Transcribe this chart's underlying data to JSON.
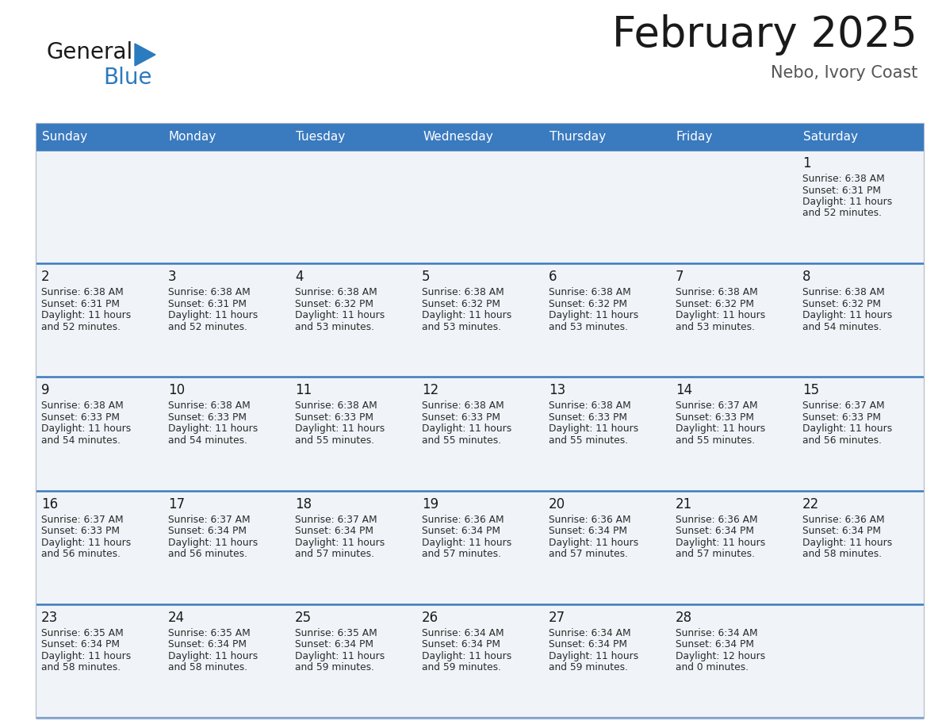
{
  "title": "February 2025",
  "subtitle": "Nebo, Ivory Coast",
  "header_bg": "#3a7abf",
  "header_text_color": "#ffffff",
  "cell_bg": "#f0f4f8",
  "border_color": "#3a7abf",
  "days_of_week": [
    "Sunday",
    "Monday",
    "Tuesday",
    "Wednesday",
    "Thursday",
    "Friday",
    "Saturday"
  ],
  "calendar": [
    [
      null,
      null,
      null,
      null,
      null,
      null,
      {
        "day": "1",
        "sunrise": "6:38 AM",
        "sunset": "6:31 PM",
        "daylight_line1": "11 hours",
        "daylight_line2": "and 52 minutes."
      }
    ],
    [
      {
        "day": "2",
        "sunrise": "6:38 AM",
        "sunset": "6:31 PM",
        "daylight_line1": "11 hours",
        "daylight_line2": "and 52 minutes."
      },
      {
        "day": "3",
        "sunrise": "6:38 AM",
        "sunset": "6:31 PM",
        "daylight_line1": "11 hours",
        "daylight_line2": "and 52 minutes."
      },
      {
        "day": "4",
        "sunrise": "6:38 AM",
        "sunset": "6:32 PM",
        "daylight_line1": "11 hours",
        "daylight_line2": "and 53 minutes."
      },
      {
        "day": "5",
        "sunrise": "6:38 AM",
        "sunset": "6:32 PM",
        "daylight_line1": "11 hours",
        "daylight_line2": "and 53 minutes."
      },
      {
        "day": "6",
        "sunrise": "6:38 AM",
        "sunset": "6:32 PM",
        "daylight_line1": "11 hours",
        "daylight_line2": "and 53 minutes."
      },
      {
        "day": "7",
        "sunrise": "6:38 AM",
        "sunset": "6:32 PM",
        "daylight_line1": "11 hours",
        "daylight_line2": "and 53 minutes."
      },
      {
        "day": "8",
        "sunrise": "6:38 AM",
        "sunset": "6:32 PM",
        "daylight_line1": "11 hours",
        "daylight_line2": "and 54 minutes."
      }
    ],
    [
      {
        "day": "9",
        "sunrise": "6:38 AM",
        "sunset": "6:33 PM",
        "daylight_line1": "11 hours",
        "daylight_line2": "and 54 minutes."
      },
      {
        "day": "10",
        "sunrise": "6:38 AM",
        "sunset": "6:33 PM",
        "daylight_line1": "11 hours",
        "daylight_line2": "and 54 minutes."
      },
      {
        "day": "11",
        "sunrise": "6:38 AM",
        "sunset": "6:33 PM",
        "daylight_line1": "11 hours",
        "daylight_line2": "and 55 minutes."
      },
      {
        "day": "12",
        "sunrise": "6:38 AM",
        "sunset": "6:33 PM",
        "daylight_line1": "11 hours",
        "daylight_line2": "and 55 minutes."
      },
      {
        "day": "13",
        "sunrise": "6:38 AM",
        "sunset": "6:33 PM",
        "daylight_line1": "11 hours",
        "daylight_line2": "and 55 minutes."
      },
      {
        "day": "14",
        "sunrise": "6:37 AM",
        "sunset": "6:33 PM",
        "daylight_line1": "11 hours",
        "daylight_line2": "and 55 minutes."
      },
      {
        "day": "15",
        "sunrise": "6:37 AM",
        "sunset": "6:33 PM",
        "daylight_line1": "11 hours",
        "daylight_line2": "and 56 minutes."
      }
    ],
    [
      {
        "day": "16",
        "sunrise": "6:37 AM",
        "sunset": "6:33 PM",
        "daylight_line1": "11 hours",
        "daylight_line2": "and 56 minutes."
      },
      {
        "day": "17",
        "sunrise": "6:37 AM",
        "sunset": "6:34 PM",
        "daylight_line1": "11 hours",
        "daylight_line2": "and 56 minutes."
      },
      {
        "day": "18",
        "sunrise": "6:37 AM",
        "sunset": "6:34 PM",
        "daylight_line1": "11 hours",
        "daylight_line2": "and 57 minutes."
      },
      {
        "day": "19",
        "sunrise": "6:36 AM",
        "sunset": "6:34 PM",
        "daylight_line1": "11 hours",
        "daylight_line2": "and 57 minutes."
      },
      {
        "day": "20",
        "sunrise": "6:36 AM",
        "sunset": "6:34 PM",
        "daylight_line1": "11 hours",
        "daylight_line2": "and 57 minutes."
      },
      {
        "day": "21",
        "sunrise": "6:36 AM",
        "sunset": "6:34 PM",
        "daylight_line1": "11 hours",
        "daylight_line2": "and 57 minutes."
      },
      {
        "day": "22",
        "sunrise": "6:36 AM",
        "sunset": "6:34 PM",
        "daylight_line1": "11 hours",
        "daylight_line2": "and 58 minutes."
      }
    ],
    [
      {
        "day": "23",
        "sunrise": "6:35 AM",
        "sunset": "6:34 PM",
        "daylight_line1": "11 hours",
        "daylight_line2": "and 58 minutes."
      },
      {
        "day": "24",
        "sunrise": "6:35 AM",
        "sunset": "6:34 PM",
        "daylight_line1": "11 hours",
        "daylight_line2": "and 58 minutes."
      },
      {
        "day": "25",
        "sunrise": "6:35 AM",
        "sunset": "6:34 PM",
        "daylight_line1": "11 hours",
        "daylight_line2": "and 59 minutes."
      },
      {
        "day": "26",
        "sunrise": "6:34 AM",
        "sunset": "6:34 PM",
        "daylight_line1": "11 hours",
        "daylight_line2": "and 59 minutes."
      },
      {
        "day": "27",
        "sunrise": "6:34 AM",
        "sunset": "6:34 PM",
        "daylight_line1": "11 hours",
        "daylight_line2": "and 59 minutes."
      },
      {
        "day": "28",
        "sunrise": "6:34 AM",
        "sunset": "6:34 PM",
        "daylight_line1": "12 hours",
        "daylight_line2": "and 0 minutes."
      },
      null
    ]
  ],
  "logo_text1": "General",
  "logo_text2": "Blue",
  "logo_color1": "#1a1a1a",
  "logo_color2": "#2b7bbf",
  "logo_triangle_color": "#2b7bbf",
  "title_fontsize": 38,
  "subtitle_fontsize": 15,
  "dow_fontsize": 11,
  "day_num_fontsize": 12,
  "cell_text_fontsize": 8.8
}
